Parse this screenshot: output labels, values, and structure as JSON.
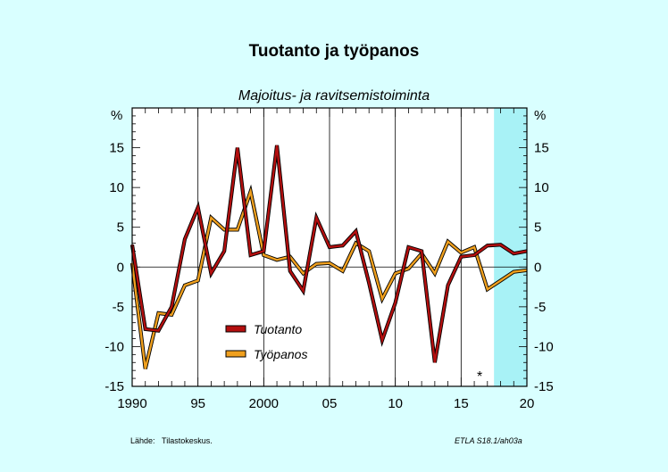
{
  "chart": {
    "title": "Tuotanto ja työpanos",
    "subtitle": "Majoitus- ja ravitsemistoiminta",
    "unit_left": "%",
    "unit_right": "%",
    "forecast_marker": "*",
    "source_label": "Lähde:",
    "source_value": "Tilastokeskus.",
    "code": "ETLA S18.1/ah03a"
  },
  "colors": {
    "background": "#d9ffff",
    "plot_background": "#ffffff",
    "forecast_shade": "#a8f2f6",
    "tuotanto": "#b40f0f",
    "tyopanos": "#f0a01e"
  },
  "chart_data": {
    "type": "line",
    "x": [
      1990,
      1991,
      1992,
      1993,
      1994,
      1995,
      1996,
      1997,
      1998,
      1999,
      2000,
      2001,
      2002,
      2003,
      2004,
      2005,
      2006,
      2007,
      2008,
      2009,
      2010,
      2011,
      2012,
      2013,
      2014,
      2015,
      2016,
      2017,
      2018,
      2019,
      2020
    ],
    "series": [
      {
        "name": "Tuotanto",
        "values": [
          2.8,
          -7.8,
          -8.0,
          -5.0,
          3.5,
          7.5,
          -0.8,
          2.0,
          15.0,
          1.5,
          2.0,
          15.3,
          -0.5,
          -3.0,
          6.2,
          2.5,
          2.7,
          4.5,
          -2.0,
          -9.2,
          -4.5,
          2.5,
          2.0,
          -12.0,
          -2.3,
          1.3,
          1.5,
          2.7,
          2.8,
          1.7,
          2.0
        ]
      },
      {
        "name": "Työpanos",
        "values": [
          0.5,
          -12.8,
          -5.8,
          -6.0,
          -2.3,
          -1.7,
          6.2,
          4.7,
          4.7,
          9.5,
          1.5,
          0.9,
          1.3,
          -0.8,
          0.4,
          0.5,
          -0.5,
          3.0,
          2.0,
          -4.0,
          -0.8,
          -0.2,
          1.7,
          -0.8,
          3.2,
          1.8,
          2.5,
          -2.8,
          -1.7,
          -0.6,
          -0.4
        ]
      }
    ],
    "xlim": [
      1990,
      2020
    ],
    "ylim": [
      -15,
      20
    ],
    "forecast_from": 2017.5,
    "x_tick_labels": [
      "1990",
      "95",
      "2000",
      "05",
      "10",
      "15",
      "20"
    ],
    "x_tick_values": [
      1990,
      1995,
      2000,
      2005,
      2010,
      2015,
      2020
    ],
    "y_tick_values": [
      15,
      10,
      5,
      0,
      -5,
      -10,
      -15
    ],
    "y_tick_labels": [
      "15",
      "10",
      "5",
      "0",
      "-5",
      "-10",
      "-15"
    ],
    "grid": true,
    "legend_position": "bottom-left"
  }
}
